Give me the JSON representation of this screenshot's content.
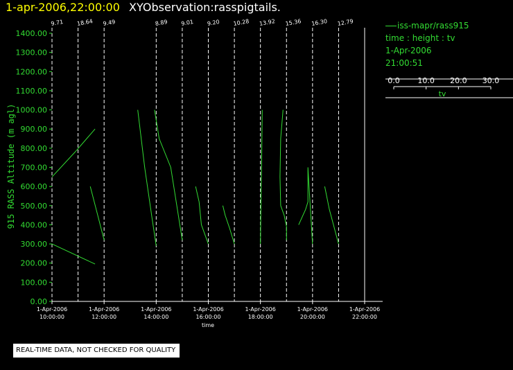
{
  "header": {
    "date": "1-apr-2006,22:00:00",
    "title": "XYObservation:rasspigtails."
  },
  "colors": {
    "series": "#33dd33",
    "axis": "#ffffff",
    "date": "#ffff00",
    "background": "#000000"
  },
  "legend": {
    "series": "iss-mapr/rass915",
    "description": "time : height : tv",
    "date": "1-Apr-2006",
    "time": "21:00:51",
    "scale_ticks": [
      "0.0",
      "10.0",
      "20.0",
      "30.0"
    ],
    "scale_label": "tv",
    "scale_range": [
      0,
      30
    ]
  },
  "disclaimer": "REAL-TIME DATA, NOT CHECKED FOR QUALITY",
  "chart_data": {
    "type": "line",
    "ylabel": "915 RASS Altitude (m agl)",
    "xlabel": "time",
    "ylim": [
      0,
      1400
    ],
    "xlim_hours": [
      10,
      22
    ],
    "yticks": [
      "0.00",
      "100.00",
      "200.00",
      "300.00",
      "400.00",
      "500.00",
      "600.00",
      "700.00",
      "800.00",
      "900.00",
      "1000.00",
      "1100.00",
      "1200.00",
      "1300.00",
      "1400.00"
    ],
    "xticks": [
      {
        "hour": 10,
        "date": "1-Apr-2006",
        "time": "10:00:00"
      },
      {
        "hour": 12,
        "date": "1-Apr-2006",
        "time": "12:00:00"
      },
      {
        "hour": 14,
        "date": "1-Apr-2006",
        "time": "14:00:00"
      },
      {
        "hour": 16,
        "date": "1-Apr-2006",
        "time": "16:00:00"
      },
      {
        "hour": 18,
        "date": "1-Apr-2006",
        "time": "18:00:00"
      },
      {
        "hour": 20,
        "date": "1-Apr-2006",
        "time": "20:00:00"
      },
      {
        "hour": 22,
        "date": "1-Apr-2006",
        "time": "22:00:00"
      }
    ],
    "observations": [
      {
        "hour": 10.0,
        "label": "9.71"
      },
      {
        "hour": 11.0,
        "label": "18.64"
      },
      {
        "hour": 12.0,
        "label": "9.49"
      },
      {
        "hour": 14.0,
        "label": "8.89"
      },
      {
        "hour": 15.0,
        "label": "9.01"
      },
      {
        "hour": 16.0,
        "label": "9.20"
      },
      {
        "hour": 17.0,
        "label": "10.28"
      },
      {
        "hour": 18.0,
        "label": "13.92"
      },
      {
        "hour": 19.0,
        "label": "15.36"
      },
      {
        "hour": 20.0,
        "label": "16.30"
      },
      {
        "hour": 21.0,
        "label": "12.79"
      }
    ],
    "series": [
      {
        "base_hour": 10.0,
        "points": [
          [
            0,
            650
          ],
          [
            10,
            780
          ],
          [
            18.64,
            900
          ]
        ]
      },
      {
        "base_hour": 10.0,
        "points": [
          [
            0,
            300
          ],
          [
            18.64,
            195
          ]
        ]
      },
      {
        "base_hour": 12.0,
        "points": [
          [
            -6,
            600
          ],
          [
            -3,
            460
          ],
          [
            0,
            320
          ]
        ]
      },
      {
        "base_hour": 14.0,
        "points": [
          [
            -8,
            1000
          ],
          [
            -5,
            700
          ],
          [
            -2,
            450
          ],
          [
            0,
            290
          ]
        ]
      },
      {
        "base_hour": 15.0,
        "points": [
          [
            -12,
            1000
          ],
          [
            -10,
            850
          ],
          [
            -5,
            700
          ],
          [
            0,
            320
          ]
        ]
      },
      {
        "base_hour": 16.0,
        "points": [
          [
            -5.5,
            600
          ],
          [
            -4,
            520
          ],
          [
            -3,
            400
          ],
          [
            0,
            300
          ]
        ]
      },
      {
        "base_hour": 17.0,
        "points": [
          [
            -5,
            500
          ],
          [
            -4,
            450
          ],
          [
            -2,
            380
          ],
          [
            0,
            300
          ]
        ]
      },
      {
        "base_hour": 18.0,
        "points": [
          [
            0,
            300
          ],
          [
            0.3,
            580
          ],
          [
            0.5,
            700
          ],
          [
            0.8,
            1000
          ]
        ]
      },
      {
        "base_hour": 19.0,
        "points": [
          [
            -1.5,
            1000
          ],
          [
            -2.5,
            850
          ],
          [
            -2.8,
            650
          ],
          [
            -2.5,
            500
          ],
          [
            -1,
            450
          ],
          [
            0,
            390
          ],
          [
            0,
            320
          ]
        ]
      },
      {
        "base_hour": 20.0,
        "points": [
          [
            -6,
            400
          ],
          [
            -3,
            480
          ],
          [
            -2,
            520
          ],
          [
            -2,
            700
          ],
          [
            -1.5,
            600
          ],
          [
            0,
            300
          ]
        ]
      },
      {
        "base_hour": 21.0,
        "points": [
          [
            -6,
            600
          ],
          [
            -4,
            480
          ],
          [
            0,
            300
          ]
        ]
      }
    ]
  }
}
